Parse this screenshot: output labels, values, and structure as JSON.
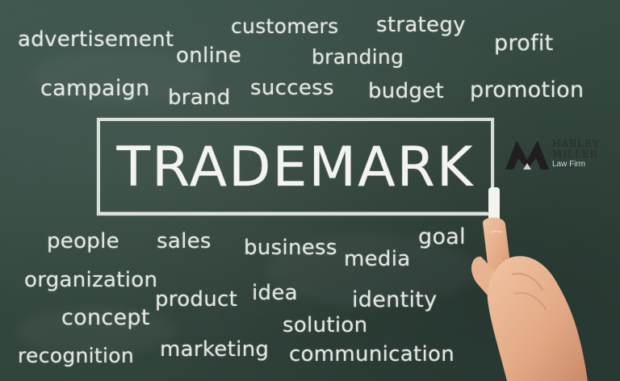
{
  "scene": {
    "center_word": "TRADEMARK",
    "words": {
      "advertisement": "advertisement",
      "online": "online",
      "customers": "customers",
      "branding": "branding",
      "strategy": "strategy",
      "profit": "profit",
      "campaign": "campaign",
      "brand": "brand",
      "success": "success",
      "budget": "budget",
      "promotion": "promotion",
      "people": "people",
      "sales": "sales",
      "business": "business",
      "media": "media",
      "goal": "goal",
      "organization": "organization",
      "product": "product",
      "idea": "idea",
      "identity": "identity",
      "concept": "concept",
      "solution": "solution",
      "recognition": "recognition",
      "marketing": "marketing",
      "communication": "communication"
    }
  },
  "logo": {
    "line1": "HARLEY",
    "line2": "MILLER",
    "line3": "Law Firm",
    "colors": {
      "mark": "#1f1f1f",
      "text": "#2a2a2a",
      "sub": "#d9d9d9"
    }
  },
  "colors": {
    "chalkboard": "#34483f",
    "chalk": "#f1f3ee",
    "skin": "#e7b08e"
  }
}
